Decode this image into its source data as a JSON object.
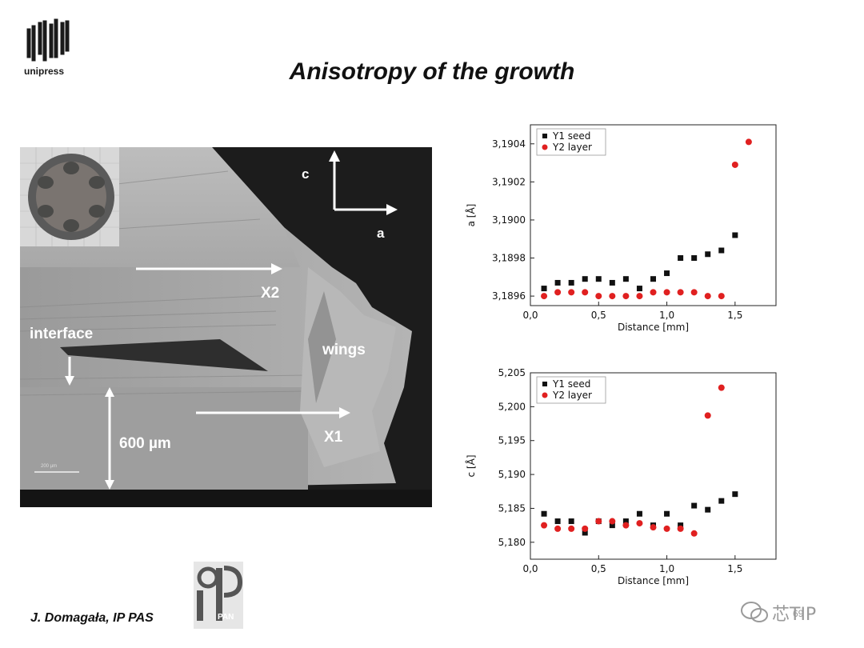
{
  "header": {
    "logo_text": "unipress",
    "title": "Anisotropy of the growth"
  },
  "photo": {
    "labels": {
      "c": "c",
      "a": "a",
      "x2": "X2",
      "x1": "X1",
      "interface": "interface",
      "wings": "wings",
      "thickness": "600 µm",
      "scalebar": "200 µm"
    }
  },
  "footer": {
    "author": "J. Domagała, IP PAS",
    "pan_logo": "PAN",
    "watermark": "芯TIP",
    "page": "69"
  },
  "colors": {
    "series1": "#111111",
    "series2": "#e02020"
  },
  "chart_data": [
    {
      "type": "scatter",
      "xlabel": "Distance [mm]",
      "ylabel": "a [Å]",
      "xlim": [
        0,
        1.8
      ],
      "ylim": [
        3.18955,
        3.1905
      ],
      "xticks": [
        "0,0",
        "0,5",
        "1,0",
        "1,5"
      ],
      "yticks": [
        "3,1896",
        "3,1898",
        "3,1900",
        "3,1902",
        "3,1904"
      ],
      "legend": "top-left",
      "series": [
        {
          "name": "Y1 seed",
          "marker": "square",
          "x": [
            0.1,
            0.2,
            0.3,
            0.4,
            0.5,
            0.6,
            0.7,
            0.8,
            0.9,
            1.0,
            1.1,
            1.2,
            1.3,
            1.4,
            1.5
          ],
          "y": [
            3.18964,
            3.18967,
            3.18967,
            3.18969,
            3.18969,
            3.18967,
            3.18969,
            3.18964,
            3.18969,
            3.18972,
            3.1898,
            3.1898,
            3.18982,
            3.18984,
            3.18992
          ]
        },
        {
          "name": "Y2 layer",
          "marker": "circle",
          "x": [
            0.1,
            0.2,
            0.3,
            0.4,
            0.5,
            0.6,
            0.7,
            0.8,
            0.9,
            1.0,
            1.1,
            1.2,
            1.3,
            1.4,
            1.5,
            1.6
          ],
          "y": [
            3.1896,
            3.18962,
            3.18962,
            3.18962,
            3.1896,
            3.1896,
            3.1896,
            3.1896,
            3.18962,
            3.18962,
            3.18962,
            3.18962,
            3.1896,
            3.1896,
            3.19029,
            3.19041
          ]
        }
      ]
    },
    {
      "type": "scatter",
      "xlabel": "Distance [mm]",
      "ylabel": "c [Å]",
      "xlim": [
        0,
        1.8
      ],
      "ylim": [
        5.1775,
        5.205
      ],
      "xticks": [
        "0,0",
        "0,5",
        "1,0",
        "1,5"
      ],
      "yticks": [
        "5,180",
        "5,185",
        "5,190",
        "5,195",
        "5,200",
        "5,205"
      ],
      "legend": "top-left",
      "series": [
        {
          "name": "Y1 seed",
          "marker": "square",
          "x": [
            0.1,
            0.2,
            0.3,
            0.4,
            0.5,
            0.6,
            0.7,
            0.8,
            0.9,
            1.0,
            1.1,
            1.2,
            1.3,
            1.4,
            1.5
          ],
          "y": [
            5.1842,
            5.1831,
            5.1831,
            5.1814,
            5.1831,
            5.1825,
            5.1831,
            5.1842,
            5.1825,
            5.1842,
            5.1825,
            5.1854,
            5.1848,
            5.1861,
            5.1871
          ]
        },
        {
          "name": "Y2 layer",
          "marker": "circle",
          "x": [
            0.1,
            0.2,
            0.3,
            0.4,
            0.5,
            0.6,
            0.7,
            0.8,
            0.9,
            1.0,
            1.1,
            1.2,
            1.3,
            1.4
          ],
          "y": [
            5.1825,
            5.182,
            5.182,
            5.182,
            5.1831,
            5.1831,
            5.1825,
            5.1828,
            5.1822,
            5.182,
            5.182,
            5.1813,
            5.1987,
            5.2028
          ]
        }
      ]
    }
  ]
}
